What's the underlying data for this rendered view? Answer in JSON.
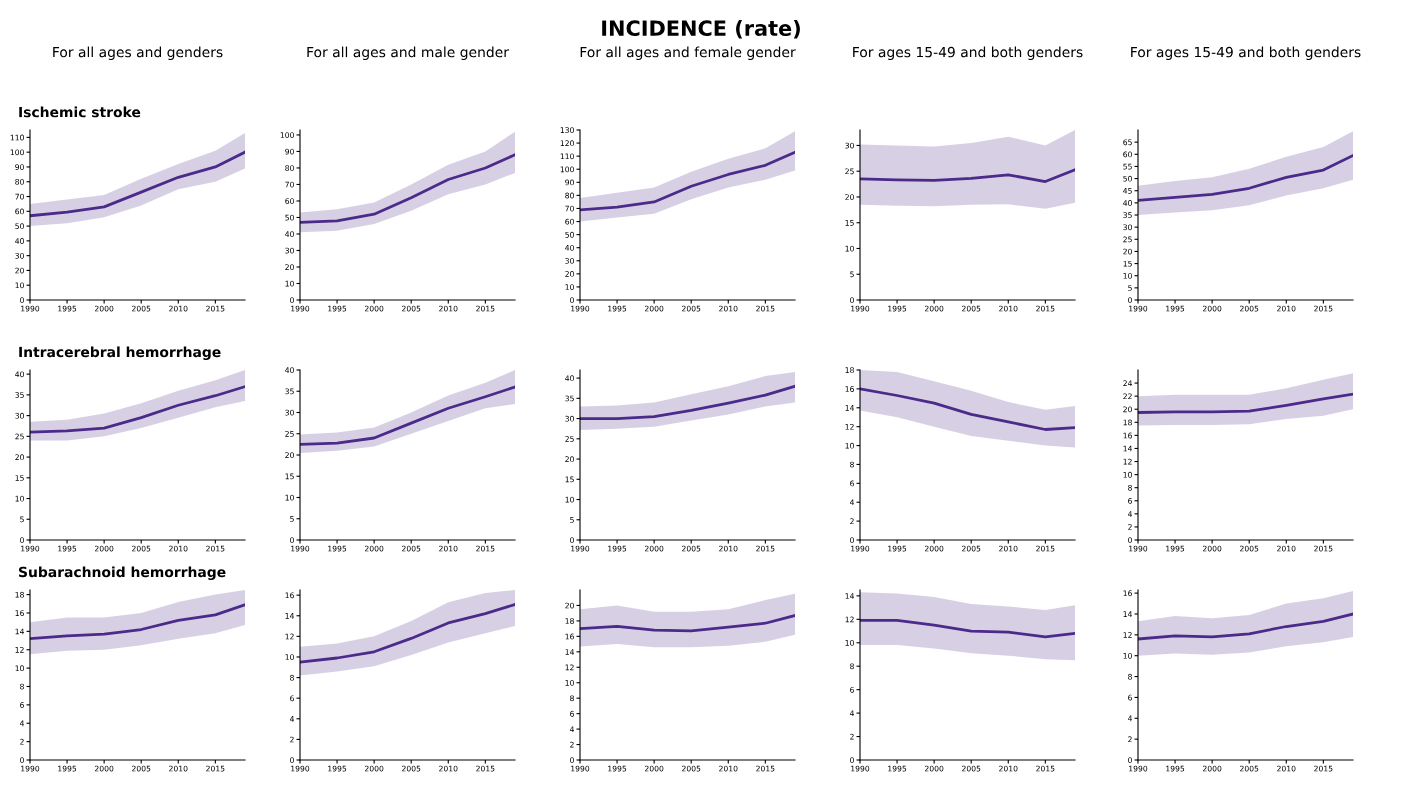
{
  "chart_data": [
    {
      "type": "line",
      "annotations": [
        "INCIDENCE (rate)"
      ],
      "title": "For all ages and genders",
      "subtitle": "Ischemic stroke",
      "x": [
        1990,
        1995,
        2000,
        2005,
        2010,
        2015,
        2019
      ],
      "xlim": [
        1990,
        2019
      ],
      "xticks": [
        1990,
        1995,
        2000,
        2005,
        2010,
        2015
      ],
      "ylim": [
        0,
        115
      ],
      "yticks": [
        0,
        10,
        20,
        30,
        40,
        50,
        60,
        70,
        80,
        90,
        100,
        110
      ],
      "series": [
        {
          "color": "#4b2a8a",
          "values": [
            57,
            59.5,
            63,
            73,
            83,
            90,
            100
          ],
          "lower": [
            50,
            52,
            56,
            64,
            75,
            80,
            89
          ],
          "upper": [
            65,
            68,
            71,
            82,
            92,
            101,
            113
          ]
        }
      ]
    },
    {
      "type": "line",
      "title": "For all ages and male gender",
      "x": [
        1990,
        1995,
        2000,
        2005,
        2010,
        2015,
        2019
      ],
      "xlim": [
        1990,
        2019
      ],
      "xticks": [
        1990,
        1995,
        2000,
        2005,
        2010,
        2015
      ],
      "ylim": [
        0,
        103
      ],
      "yticks": [
        0,
        10,
        20,
        30,
        40,
        50,
        60,
        70,
        80,
        90,
        100
      ],
      "series": [
        {
          "color": "#4b2a8a",
          "values": [
            47,
            48,
            52,
            62,
            73,
            80,
            88
          ],
          "lower": [
            41,
            42,
            46,
            54,
            64,
            70,
            77
          ],
          "upper": [
            53,
            55,
            59,
            70,
            82,
            90,
            102
          ]
        }
      ]
    },
    {
      "type": "line",
      "title": "For all ages and female gender",
      "x": [
        1990,
        1995,
        2000,
        2005,
        2010,
        2015,
        2019
      ],
      "xlim": [
        1990,
        2019
      ],
      "xticks": [
        1990,
        1995,
        2000,
        2005,
        2010,
        2015
      ],
      "ylim": [
        0,
        130
      ],
      "yticks": [
        0,
        10,
        20,
        30,
        40,
        50,
        60,
        70,
        80,
        90,
        100,
        110,
        120,
        130
      ],
      "series": [
        {
          "color": "#4b2a8a",
          "values": [
            69,
            71,
            75,
            87,
            96,
            103,
            113
          ],
          "lower": [
            60,
            63,
            66,
            77,
            86,
            92,
            99
          ],
          "upper": [
            78,
            82,
            86,
            98,
            108,
            116,
            129
          ]
        }
      ]
    },
    {
      "type": "line",
      "title": "For ages 15-49 and both genders",
      "x": [
        1990,
        1995,
        2000,
        2005,
        2010,
        2015,
        2019
      ],
      "xlim": [
        1990,
        2019
      ],
      "xticks": [
        1990,
        1995,
        2000,
        2005,
        2010,
        2015
      ],
      "ylim": [
        0,
        33
      ],
      "yticks": [
        0,
        5,
        10,
        15,
        20,
        25,
        30
      ],
      "series": [
        {
          "color": "#4b2a8a",
          "values": [
            23.5,
            23.3,
            23.2,
            23.6,
            24.3,
            23,
            25.3
          ],
          "lower": [
            18.5,
            18.3,
            18.2,
            18.5,
            18.6,
            17.7,
            18.9
          ],
          "upper": [
            30.2,
            30,
            29.8,
            30.5,
            31.7,
            30,
            33
          ]
        }
      ]
    },
    {
      "type": "line",
      "title": "For ages 15-49 and both genders",
      "x": [
        1990,
        1995,
        2000,
        2005,
        2010,
        2015,
        2019
      ],
      "xlim": [
        1990,
        2019
      ],
      "xticks": [
        1990,
        1995,
        2000,
        2005,
        2010,
        2015
      ],
      "ylim": [
        0,
        70
      ],
      "yticks": [
        0,
        5,
        10,
        15,
        20,
        25,
        30,
        35,
        40,
        45,
        50,
        55,
        60,
        65
      ],
      "series": [
        {
          "color": "#4b2a8a",
          "values": [
            41,
            42.3,
            43.5,
            46,
            50.5,
            53.5,
            59.5
          ],
          "lower": [
            35,
            36,
            37,
            39,
            43,
            46,
            49.5
          ],
          "upper": [
            47,
            49,
            50.5,
            54,
            59,
            63,
            69.5
          ]
        }
      ]
    },
    {
      "type": "line",
      "subtitle": "Intracerebral hemorrhage",
      "x": [
        1990,
        1995,
        2000,
        2005,
        2010,
        2015,
        2019
      ],
      "xlim": [
        1990,
        2019
      ],
      "xticks": [
        1990,
        1995,
        2000,
        2005,
        2010,
        2015
      ],
      "ylim": [
        0,
        41
      ],
      "yticks": [
        0,
        5,
        10,
        15,
        20,
        25,
        30,
        35,
        40
      ],
      "series": [
        {
          "color": "#4b2a8a",
          "values": [
            26,
            26.3,
            27,
            29.5,
            32.5,
            34.8,
            37
          ],
          "lower": [
            24,
            24,
            25,
            27,
            29.5,
            32,
            33.5
          ],
          "upper": [
            28.5,
            29,
            30.5,
            33,
            36,
            38.5,
            41
          ]
        }
      ]
    },
    {
      "type": "line",
      "x": [
        1990,
        1995,
        2000,
        2005,
        2010,
        2015,
        2019
      ],
      "xlim": [
        1990,
        2019
      ],
      "xticks": [
        1990,
        1995,
        2000,
        2005,
        2010,
        2015
      ],
      "ylim": [
        0,
        40
      ],
      "yticks": [
        0,
        5,
        10,
        15,
        20,
        25,
        30,
        35,
        40
      ],
      "series": [
        {
          "color": "#4b2a8a",
          "values": [
            22.5,
            22.8,
            24,
            27.5,
            31,
            33.7,
            36
          ],
          "lower": [
            20.5,
            21,
            22,
            25,
            28,
            31,
            32
          ],
          "upper": [
            24.8,
            25.3,
            26.5,
            30,
            34,
            37,
            40
          ]
        }
      ]
    },
    {
      "type": "line",
      "x": [
        1990,
        1995,
        2000,
        2005,
        2010,
        2015,
        2019
      ],
      "xlim": [
        1990,
        2019
      ],
      "xticks": [
        1990,
        1995,
        2000,
        2005,
        2010,
        2015
      ],
      "ylim": [
        0,
        42
      ],
      "yticks": [
        0,
        5,
        10,
        15,
        20,
        25,
        30,
        35,
        40
      ],
      "series": [
        {
          "color": "#4b2a8a",
          "values": [
            30,
            30,
            30.5,
            32,
            33.8,
            35.8,
            38
          ],
          "lower": [
            27.2,
            27.5,
            28,
            29.5,
            31,
            33,
            34
          ],
          "upper": [
            33,
            33.2,
            34,
            36,
            38,
            40.5,
            41.5
          ]
        }
      ]
    },
    {
      "type": "line",
      "x": [
        1990,
        1995,
        2000,
        2005,
        2010,
        2015,
        2019
      ],
      "xlim": [
        1990,
        2019
      ],
      "xticks": [
        1990,
        1995,
        2000,
        2005,
        2010,
        2015
      ],
      "ylim": [
        0,
        18
      ],
      "yticks": [
        0,
        2,
        4,
        6,
        8,
        10,
        12,
        14,
        16,
        18
      ],
      "series": [
        {
          "color": "#4b2a8a",
          "values": [
            16,
            15.3,
            14.5,
            13.3,
            12.5,
            11.7,
            11.9
          ],
          "lower": [
            13.7,
            13,
            12,
            11,
            10.5,
            10,
            9.8
          ],
          "upper": [
            18,
            17.8,
            16.8,
            15.8,
            14.6,
            13.8,
            14.2
          ]
        }
      ]
    },
    {
      "type": "line",
      "x": [
        1990,
        1995,
        2000,
        2005,
        2010,
        2015,
        2019
      ],
      "xlim": [
        1990,
        2019
      ],
      "xticks": [
        1990,
        1995,
        2000,
        2005,
        2010,
        2015
      ],
      "ylim": [
        0,
        26
      ],
      "yticks": [
        0,
        2,
        4,
        6,
        8,
        10,
        12,
        14,
        16,
        18,
        20,
        22,
        24
      ],
      "series": [
        {
          "color": "#4b2a8a",
          "values": [
            19.5,
            19.6,
            19.6,
            19.7,
            20.6,
            21.6,
            22.3
          ],
          "lower": [
            17.5,
            17.6,
            17.6,
            17.7,
            18.5,
            19,
            20
          ],
          "upper": [
            22,
            22.2,
            22.2,
            22.2,
            23.2,
            24.5,
            25.5
          ]
        }
      ]
    },
    {
      "type": "line",
      "subtitle": "Subarachnoid hemorrhage",
      "x": [
        1990,
        1995,
        2000,
        2005,
        2010,
        2015,
        2019
      ],
      "xlim": [
        1990,
        2019
      ],
      "xticks": [
        1990,
        1995,
        2000,
        2005,
        2010,
        2015
      ],
      "ylim": [
        0,
        18.5
      ],
      "yticks": [
        0,
        2,
        4,
        6,
        8,
        10,
        12,
        14,
        16,
        18
      ],
      "series": [
        {
          "color": "#4b2a8a",
          "values": [
            13.2,
            13.5,
            13.7,
            14.2,
            15.2,
            15.8,
            16.9
          ],
          "lower": [
            11.5,
            11.9,
            12,
            12.5,
            13.2,
            13.8,
            14.7
          ],
          "upper": [
            15,
            15.5,
            15.5,
            16,
            17.2,
            18,
            18.5
          ]
        }
      ]
    },
    {
      "type": "line",
      "x": [
        1990,
        1995,
        2000,
        2005,
        2010,
        2015,
        2019
      ],
      "xlim": [
        1990,
        2019
      ],
      "xticks": [
        1990,
        1995,
        2000,
        2005,
        2010,
        2015
      ],
      "ylim": [
        0,
        16.5
      ],
      "yticks": [
        0,
        2,
        4,
        6,
        8,
        10,
        12,
        14,
        16
      ],
      "series": [
        {
          "color": "#4b2a8a",
          "values": [
            9.5,
            9.9,
            10.5,
            11.8,
            13.3,
            14.2,
            15.1
          ],
          "lower": [
            8.2,
            8.6,
            9.1,
            10.2,
            11.4,
            12.3,
            13
          ],
          "upper": [
            11,
            11.3,
            12,
            13.5,
            15.3,
            16.2,
            16.5
          ]
        }
      ]
    },
    {
      "type": "line",
      "x": [
        1990,
        1995,
        2000,
        2005,
        2010,
        2015,
        2019
      ],
      "xlim": [
        1990,
        2019
      ],
      "xticks": [
        1990,
        1995,
        2000,
        2005,
        2010,
        2015
      ],
      "ylim": [
        0,
        22
      ],
      "yticks": [
        0,
        2,
        4,
        6,
        8,
        10,
        12,
        14,
        16,
        18,
        20
      ],
      "series": [
        {
          "color": "#4b2a8a",
          "values": [
            17,
            17.3,
            16.8,
            16.7,
            17.2,
            17.7,
            18.7
          ],
          "lower": [
            14.7,
            15,
            14.6,
            14.6,
            14.8,
            15.3,
            16.2
          ],
          "upper": [
            19.5,
            20,
            19.2,
            19.2,
            19.5,
            20.7,
            21.5
          ]
        }
      ]
    },
    {
      "type": "line",
      "x": [
        1990,
        1995,
        2000,
        2005,
        2010,
        2015,
        2019
      ],
      "xlim": [
        1990,
        2019
      ],
      "xticks": [
        1990,
        1995,
        2000,
        2005,
        2010,
        2015
      ],
      "ylim": [
        0,
        14.5
      ],
      "yticks": [
        0,
        2,
        4,
        6,
        8,
        10,
        12,
        14
      ],
      "series": [
        {
          "color": "#4b2a8a",
          "values": [
            11.9,
            11.9,
            11.5,
            11,
            10.9,
            10.5,
            10.8
          ],
          "lower": [
            9.8,
            9.8,
            9.5,
            9.1,
            8.9,
            8.6,
            8.5
          ],
          "upper": [
            14.3,
            14.2,
            13.9,
            13.3,
            13.1,
            12.8,
            13.2
          ]
        }
      ]
    },
    {
      "type": "line",
      "x": [
        1990,
        1995,
        2000,
        2005,
        2010,
        2015,
        2019
      ],
      "xlim": [
        1990,
        2019
      ],
      "xticks": [
        1990,
        1995,
        2000,
        2005,
        2010,
        2015
      ],
      "ylim": [
        0,
        16.3
      ],
      "yticks": [
        0,
        2,
        4,
        6,
        8,
        10,
        12,
        14,
        16
      ],
      "series": [
        {
          "color": "#4b2a8a",
          "values": [
            11.6,
            11.9,
            11.8,
            12.1,
            12.8,
            13.3,
            14
          ],
          "lower": [
            10,
            10.2,
            10.1,
            10.3,
            10.9,
            11.3,
            11.8
          ],
          "upper": [
            13.3,
            13.8,
            13.6,
            13.9,
            15,
            15.5,
            16.2
          ]
        }
      ]
    }
  ]
}
